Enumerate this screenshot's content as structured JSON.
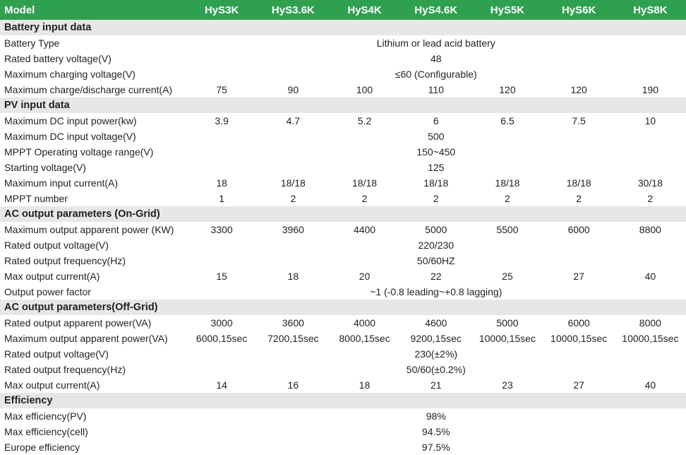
{
  "header": {
    "label": "Model",
    "models": [
      "HyS3K",
      "HyS3.6K",
      "HyS4K",
      "HyS4.6K",
      "HyS5K",
      "HyS6K",
      "HyS8K"
    ]
  },
  "colors": {
    "header_bg": "#2ea04f",
    "section_bg": "#e6e7e8"
  },
  "sections": [
    {
      "title": "Battery input data",
      "rows": [
        {
          "label": "Battery Type",
          "span": "Lithium or lead acid battery"
        },
        {
          "label": "Rated battery voltage(V)",
          "span": "48"
        },
        {
          "label": "Maximum charging voltage(V)",
          "span": "≤60 (Configurable)"
        },
        {
          "label": "Maximum charge/discharge current(A)",
          "values": [
            "75",
            "90",
            "100",
            "110",
            "120",
            "120",
            "190"
          ]
        }
      ]
    },
    {
      "title": "PV input data",
      "rows": [
        {
          "label": "Maximum DC input power(kw)",
          "values": [
            "3.9",
            "4.7",
            "5.2",
            "6",
            "6.5",
            "7.5",
            "10"
          ]
        },
        {
          "label": "Maximum DC input voltage(V)",
          "span": "500"
        },
        {
          "label": "MPPT Operating voltage range(V)",
          "span": "150~450"
        },
        {
          "label": "Starting voltage(V)",
          "span": "125"
        },
        {
          "label": "Maximum input current(A)",
          "values": [
            "18",
            "18/18",
            "18/18",
            "18/18",
            "18/18",
            "18/18",
            "30/18"
          ]
        },
        {
          "label": "MPPT number",
          "values": [
            "1",
            "2",
            "2",
            "2",
            "2",
            "2",
            "2"
          ]
        }
      ]
    },
    {
      "title": "AC output parameters (On-Grid)",
      "rows": [
        {
          "label": "Maximum output apparent power (KW)",
          "values": [
            "3300",
            "3960",
            "4400",
            "5000",
            "5500",
            "6000",
            "8800"
          ]
        },
        {
          "label": "Rated output voltage(V)",
          "span": "220/230"
        },
        {
          "label": "Rated output frequency(Hz)",
          "span": "50/60HZ"
        },
        {
          "label": "Max output current(A)",
          "values": [
            "15",
            "18",
            "20",
            "22",
            "25",
            "27",
            "40"
          ]
        },
        {
          "label": "Output power factor",
          "span": "~1 (-0.8 leading~+0.8 lagging)"
        }
      ]
    },
    {
      "title": "AC output parameters(Off-Grid)",
      "rows": [
        {
          "label": "Rated output apparent power(VA)",
          "values": [
            "3000",
            "3600",
            "4000",
            "4600",
            "5000",
            "6000",
            "8000"
          ]
        },
        {
          "label": "Maximum output apparent power(VA)",
          "values": [
            "6000,15sec",
            "7200,15sec",
            "8000,15sec",
            "9200,15sec",
            "10000,15sec",
            "10000,15sec",
            "10000,15sec"
          ]
        },
        {
          "label": "Rated output voltage(V)",
          "span": "230(±2%)"
        },
        {
          "label": "Rated output frequency(Hz)",
          "span": "50/60(±0.2%)"
        },
        {
          "label": "Max output current(A)",
          "values": [
            "14",
            "16",
            "18",
            "21",
            "23",
            "27",
            "40"
          ]
        }
      ]
    },
    {
      "title": "Efficiency",
      "rows": [
        {
          "label": "Max efficiency(PV)",
          "span": "98%"
        },
        {
          "label": "Max efficiency(cell)",
          "span": "94.5%"
        },
        {
          "label": "Europe efficiency",
          "span": "97.5%"
        }
      ]
    }
  ]
}
